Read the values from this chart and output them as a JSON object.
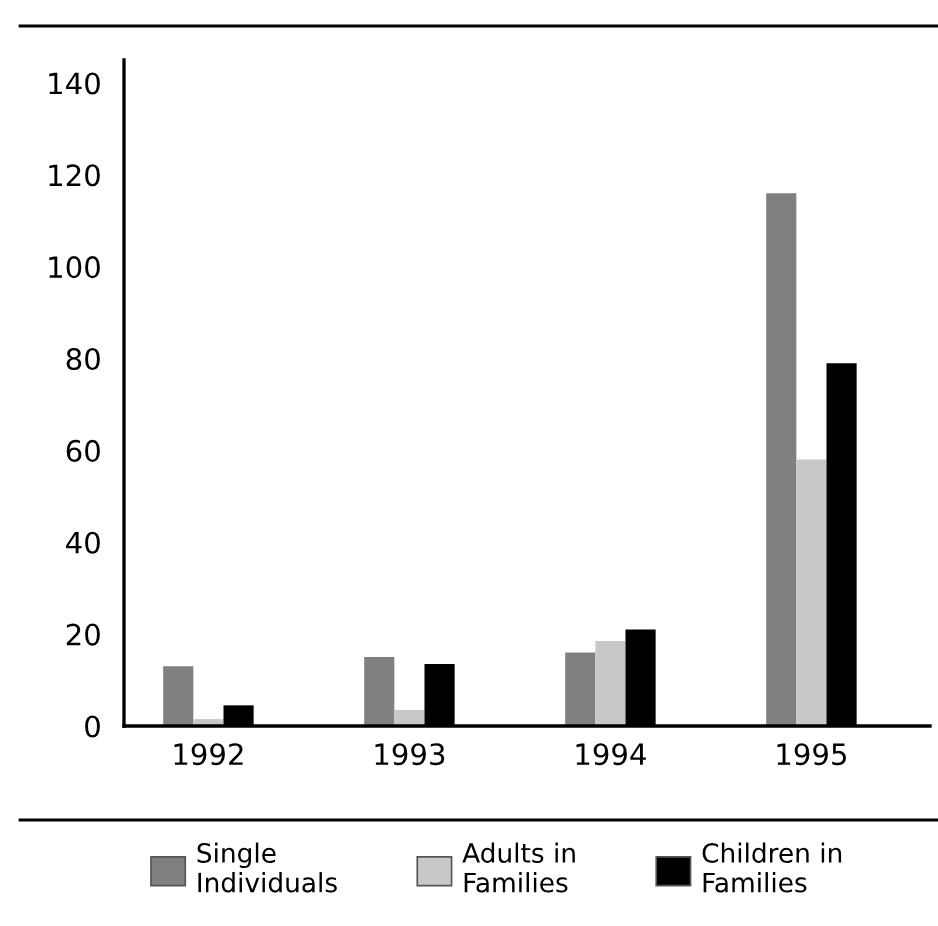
{
  "chart_data": {
    "type": "bar",
    "categories": [
      "1992",
      "1993",
      "1994",
      "1995"
    ],
    "series": [
      {
        "name": "Single Individuals",
        "color": "#808080",
        "values": [
          13,
          15,
          16,
          116
        ]
      },
      {
        "name": "Adults in Families",
        "color": "#c8c8c8",
        "values": [
          1.5,
          3.5,
          18.5,
          58
        ]
      },
      {
        "name": "Children in Families",
        "color": "#000000",
        "values": [
          4.5,
          13.5,
          21,
          79
        ]
      }
    ],
    "ylim": [
      0,
      145
    ],
    "yticks": [
      0,
      20,
      40,
      60,
      80,
      100,
      120,
      140
    ],
    "legend": "bottom"
  }
}
